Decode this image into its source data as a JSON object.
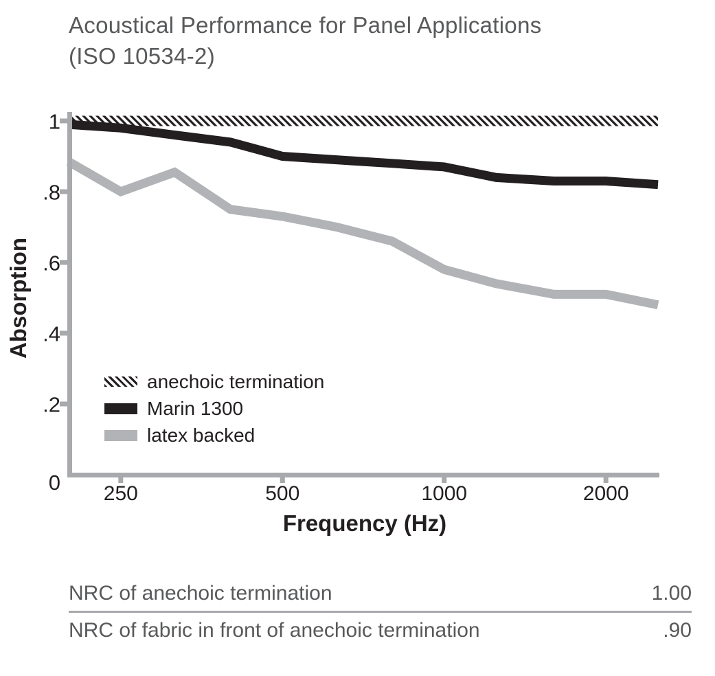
{
  "title": {
    "line1": "Acoustical Performance for Panel Applications",
    "line2": "(ISO 10534-2)"
  },
  "chart_data": {
    "type": "line",
    "title": "Acoustical Performance for Panel Applications (ISO 10534-2)",
    "xlabel": "Frequency (Hz)",
    "ylabel": "Absorption",
    "x_scale": "log",
    "xlim": [
      200,
      2500
    ],
    "ylim": [
      0,
      1
    ],
    "grid": false,
    "legend_position": "inside lower-left",
    "x": [
      200,
      250,
      315,
      400,
      500,
      630,
      800,
      1000,
      1250,
      1600,
      2000,
      2500
    ],
    "xtick_values": [
      250,
      500,
      1000,
      2000
    ],
    "xtick_labels": [
      "250",
      "500",
      "1000",
      "2000"
    ],
    "ytick_values": [
      1,
      0.8,
      0.6,
      0.4,
      0.2,
      0
    ],
    "ytick_labels": [
      "1",
      ".8",
      ".6",
      ".4",
      ".2",
      "0"
    ],
    "series": [
      {
        "name": "anechoic termination",
        "style": "hatched",
        "color": "#231f20",
        "values": [
          1.0,
          1.0,
          1.0,
          1.0,
          1.0,
          1.0,
          1.0,
          1.0,
          1.0,
          1.0,
          1.0,
          1.0
        ]
      },
      {
        "name": "Marin 1300",
        "style": "solid",
        "color": "#231f20",
        "values": [
          0.99,
          0.98,
          0.96,
          0.94,
          0.9,
          0.89,
          0.88,
          0.87,
          0.84,
          0.83,
          0.83,
          0.82
        ]
      },
      {
        "name": "latex backed",
        "style": "solid",
        "color": "#b1b3b6",
        "values": [
          0.885,
          0.8,
          0.855,
          0.75,
          0.73,
          0.7,
          0.66,
          0.58,
          0.54,
          0.51,
          0.51,
          0.48
        ]
      }
    ]
  },
  "nrc_table": {
    "rows": [
      {
        "label": "NRC of anechoic termination",
        "value": "1.00"
      },
      {
        "label": "NRC of fabric in front of anechoic termination",
        "value": ".90"
      }
    ]
  },
  "colors": {
    "title_text": "#58595b",
    "axis": "#a7a9ac",
    "tick_text": "#231f20",
    "black_line": "#231f20",
    "gray_line": "#b1b3b6",
    "table_text": "#58595b",
    "divider": "#a7a9ac"
  }
}
